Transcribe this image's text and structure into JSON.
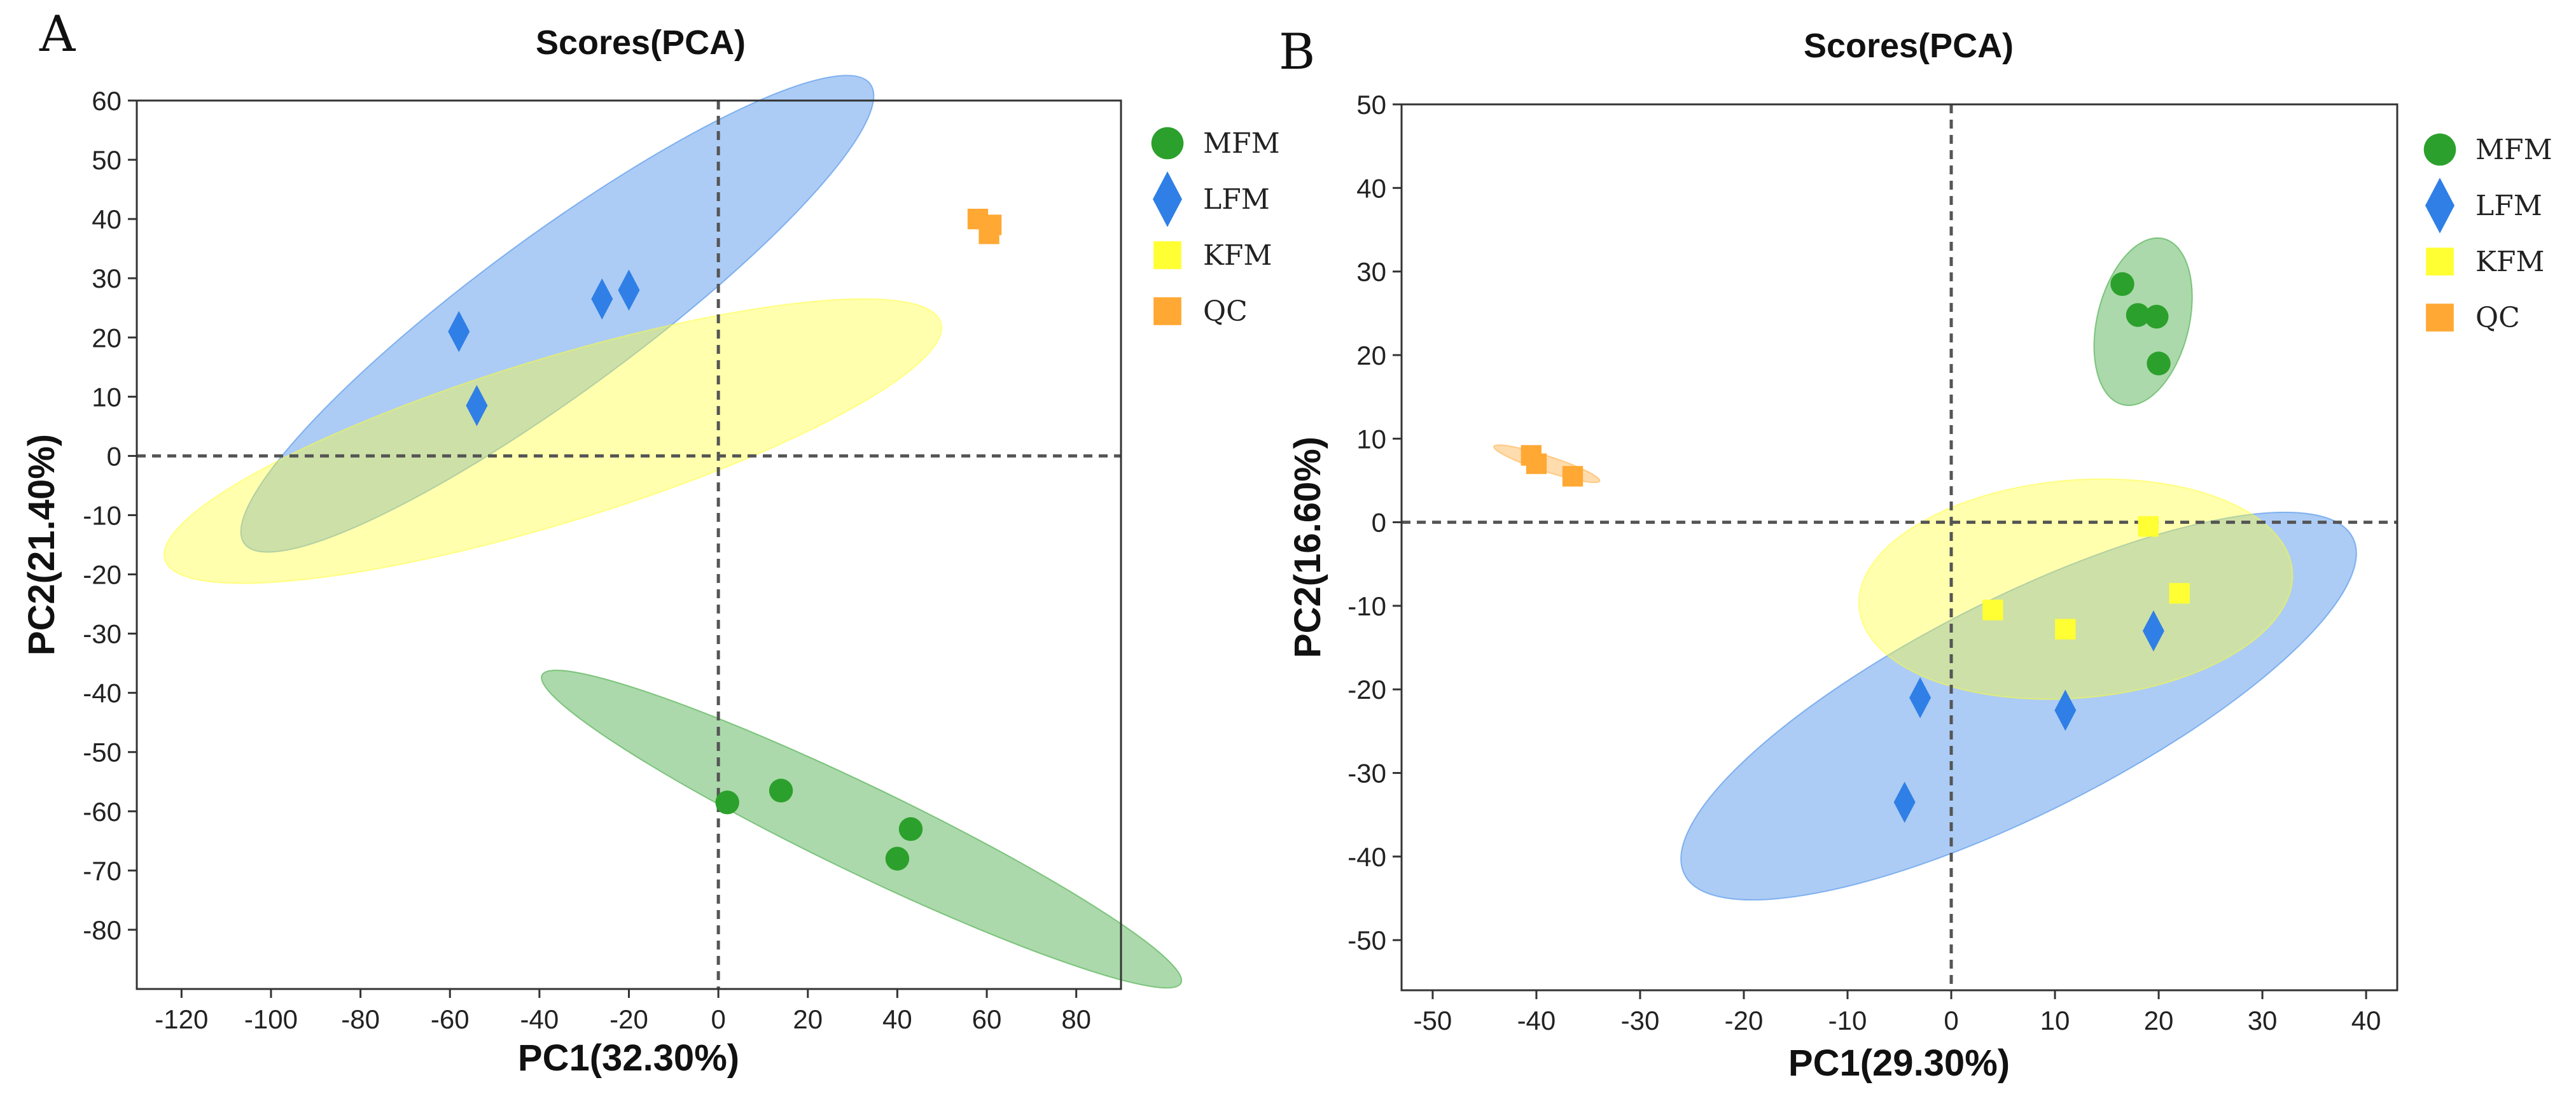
{
  "chart_data": [
    {
      "panel": "A",
      "type": "scatter",
      "title": "Scores(PCA)",
      "xlabel": "PC1(32.30%)",
      "ylabel": "PC2(21.40%)",
      "xlim": [
        -130,
        90
      ],
      "ylim": [
        -90,
        60
      ],
      "xticks": [
        -120,
        -100,
        -80,
        -60,
        -40,
        -20,
        0,
        20,
        40,
        60,
        80
      ],
      "yticks": [
        60,
        50,
        40,
        30,
        20,
        10,
        0,
        -10,
        -20,
        -30,
        -40,
        -50,
        -60,
        -70,
        -80
      ],
      "legend": [
        {
          "label": "MFM",
          "color": "#2ca02c",
          "marker": "circle"
        },
        {
          "label": "LFM",
          "color": "#2f7fe6",
          "marker": "diamond"
        },
        {
          "label": "KFM",
          "color": "#ffff33",
          "marker": "square"
        },
        {
          "label": "QC",
          "color": "#ffa833",
          "marker": "square"
        }
      ],
      "ellipses": [
        {
          "group": "MFM",
          "color": "#2ca02c",
          "cx": 32,
          "cy": -63,
          "rx": 76,
          "ry": 7.5,
          "angle_deg": -20
        },
        {
          "group": "LFM",
          "color": "#2f7fe6",
          "cx": -36,
          "cy": 24,
          "rx": 80,
          "ry": 14,
          "angle_deg": 29
        },
        {
          "group": "KFM",
          "color": "#ffff33",
          "cx": -37,
          "cy": 2.5,
          "rx": 89,
          "ry": 14,
          "angle_deg": 13
        }
      ],
      "series": [
        {
          "name": "MFM",
          "color": "#2ca02c",
          "marker": "circle",
          "points": [
            [
              2,
              -58.5
            ],
            [
              14,
              -56.5
            ],
            [
              43,
              -63
            ],
            [
              40,
              -68
            ]
          ]
        },
        {
          "name": "LFM",
          "color": "#2f7fe6",
          "marker": "diamond",
          "points": [
            [
              -58,
              21
            ],
            [
              -54,
              8.5
            ],
            [
              -26,
              26.5
            ],
            [
              -20,
              28
            ]
          ]
        },
        {
          "name": "KFM",
          "color": "#ffff33",
          "marker": "square",
          "points": []
        },
        {
          "name": "QC",
          "color": "#ffa833",
          "marker": "square",
          "points": [
            [
              58,
              40
            ],
            [
              61,
              39
            ],
            [
              60.5,
              37.5
            ]
          ]
        }
      ]
    },
    {
      "panel": "B",
      "type": "scatter",
      "title": "Scores(PCA)",
      "xlabel": "PC1(29.30%)",
      "ylabel": "PC2(16.60%)",
      "xlim": [
        -53,
        43
      ],
      "ylim": [
        -56,
        50
      ],
      "xticks": [
        -50,
        -40,
        -30,
        -20,
        -10,
        0,
        10,
        20,
        30,
        40
      ],
      "yticks": [
        50,
        40,
        30,
        20,
        10,
        0,
        -10,
        -20,
        -30,
        -40,
        -50
      ],
      "legend": [
        {
          "label": "MFM",
          "color": "#2ca02c",
          "marker": "circle"
        },
        {
          "label": "LFM",
          "color": "#2f7fe6",
          "marker": "diamond"
        },
        {
          "label": "KFM",
          "color": "#ffff33",
          "marker": "square"
        },
        {
          "label": "QC",
          "color": "#ffa833",
          "marker": "square"
        }
      ],
      "ellipses": [
        {
          "group": "MFM",
          "color": "#2ca02c",
          "cx": 18.5,
          "cy": 24,
          "rx": 4.5,
          "ry": 10,
          "angle_deg": -17
        },
        {
          "group": "LFM",
          "color": "#2f7fe6",
          "cx": 6.5,
          "cy": -22,
          "rx": 38,
          "ry": 12,
          "angle_deg": 32
        },
        {
          "group": "KFM",
          "color": "#ffff33",
          "cx": 12,
          "cy": -8,
          "rx": 21,
          "ry": 13,
          "angle_deg": 6
        },
        {
          "group": "QC",
          "color": "#ffa833",
          "cx": -39,
          "cy": 7,
          "rx": 5.5,
          "ry": 0.9,
          "angle_deg": -22
        }
      ],
      "series": [
        {
          "name": "MFM",
          "color": "#2ca02c",
          "marker": "circle",
          "points": [
            [
              16.5,
              28.5
            ],
            [
              18,
              24.8
            ],
            [
              19.8,
              24.6
            ],
            [
              20,
              19
            ]
          ]
        },
        {
          "name": "LFM",
          "color": "#2f7fe6",
          "marker": "diamond",
          "points": [
            [
              -3,
              -21
            ],
            [
              -4.5,
              -33.5
            ],
            [
              11,
              -22.5
            ],
            [
              19.5,
              -13
            ]
          ]
        },
        {
          "name": "KFM",
          "color": "#ffff33",
          "marker": "square",
          "points": [
            [
              19,
              -0.5
            ],
            [
              4,
              -10.5
            ],
            [
              11,
              -12.8
            ],
            [
              22,
              -8.5
            ]
          ]
        },
        {
          "name": "QC",
          "color": "#ffa833",
          "marker": "square",
          "points": [
            [
              -40.5,
              8
            ],
            [
              -40,
              7
            ],
            [
              -36.5,
              5.5
            ]
          ]
        }
      ]
    }
  ]
}
